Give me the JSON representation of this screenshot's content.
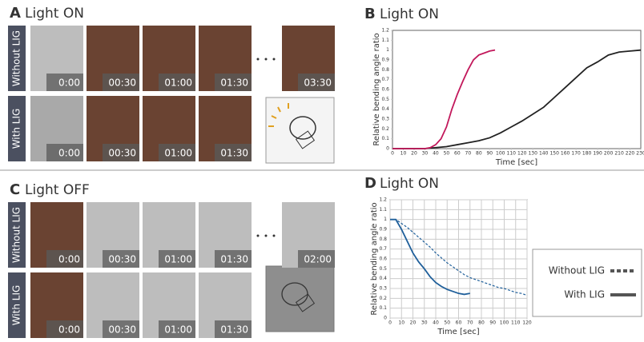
{
  "panels": [
    {
      "label": "A",
      "title": "Light ON",
      "rows": [
        {
          "label": "Without LIG",
          "times": [
            "0:00",
            "00:30",
            "01:00",
            "01:30",
            "03:30"
          ]
        },
        {
          "label": "With LIG",
          "times": [
            "0:00",
            "00:30",
            "01:00",
            "01:30"
          ]
        }
      ]
    },
    {
      "label": "C",
      "title": "Light OFF",
      "rows": [
        {
          "label": "Without LIG",
          "times": [
            "0:00",
            "00:30",
            "01:00",
            "01:30",
            "02:00"
          ]
        },
        {
          "label": "With LIG",
          "times": [
            "0:00",
            "00:30",
            "01:00",
            "01:30"
          ]
        }
      ]
    }
  ],
  "chart_data": [
    {
      "type": "line",
      "panel": "B",
      "title": "Light ON",
      "x_label": "Time [sec]",
      "y_label": "Relative bending angle ratio",
      "xlim": [
        0,
        230
      ],
      "xticks": [
        0,
        10,
        20,
        30,
        40,
        50,
        60,
        70,
        80,
        90,
        100,
        110,
        120,
        130,
        140,
        150,
        160,
        170,
        180,
        190,
        200,
        210,
        220,
        230
      ],
      "ylim": [
        0,
        1.2
      ],
      "yticks": [
        0,
        0.1,
        0.2,
        0.3,
        0.4,
        0.5,
        0.6,
        0.7,
        0.8,
        0.9,
        1,
        1.1,
        1.2
      ],
      "grid": false,
      "series": [
        {
          "name": "Without LIG",
          "color": "#222222",
          "dashed": false,
          "x": [
            0,
            10,
            20,
            30,
            40,
            50,
            60,
            70,
            80,
            90,
            100,
            110,
            120,
            130,
            140,
            150,
            160,
            170,
            180,
            190,
            200,
            210,
            220,
            230
          ],
          "values": [
            0,
            0,
            0,
            0,
            0.01,
            0.02,
            0.04,
            0.06,
            0.08,
            0.11,
            0.16,
            0.22,
            0.28,
            0.35,
            0.42,
            0.52,
            0.62,
            0.72,
            0.82,
            0.88,
            0.95,
            0.98,
            0.99,
            1
          ]
        },
        {
          "name": "With LIG",
          "color": "#c2185b",
          "dashed": false,
          "x": [
            0,
            5,
            10,
            15,
            20,
            25,
            30,
            35,
            40,
            45,
            50,
            55,
            60,
            65,
            70,
            75,
            80,
            85,
            90,
            95
          ],
          "values": [
            0,
            0,
            0,
            0,
            0,
            0,
            0,
            0.01,
            0.04,
            0.1,
            0.22,
            0.4,
            0.55,
            0.68,
            0.8,
            0.9,
            0.95,
            0.97,
            0.99,
            1
          ]
        }
      ]
    },
    {
      "type": "line",
      "panel": "D",
      "title": "Light ON",
      "x_label": "Time [sec]",
      "y_label": "Relative bending angle ratio",
      "xlim": [
        0,
        120
      ],
      "xticks": [
        0,
        10,
        20,
        30,
        40,
        50,
        60,
        70,
        80,
        90,
        100,
        110,
        120
      ],
      "ylim": [
        0,
        1.2
      ],
      "yticks": [
        0,
        0.1,
        0.2,
        0.3,
        0.4,
        0.5,
        0.6,
        0.7,
        0.8,
        0.9,
        1,
        1.1,
        1.2
      ],
      "grid": true,
      "series": [
        {
          "name": "Without LIG",
          "color": "#1f5f9a",
          "dashed": true,
          "x": [
            0,
            5,
            10,
            15,
            20,
            25,
            30,
            35,
            40,
            45,
            50,
            55,
            60,
            65,
            70,
            75,
            80,
            85,
            90,
            95,
            100,
            105,
            110,
            115,
            120
          ],
          "values": [
            1,
            1,
            0.96,
            0.92,
            0.87,
            0.82,
            0.77,
            0.72,
            0.66,
            0.61,
            0.56,
            0.52,
            0.48,
            0.44,
            0.41,
            0.39,
            0.37,
            0.35,
            0.33,
            0.31,
            0.3,
            0.28,
            0.26,
            0.25,
            0.23
          ]
        },
        {
          "name": "With LIG",
          "color": "#1f5f9a",
          "dashed": false,
          "x": [
            0,
            5,
            10,
            15,
            20,
            25,
            30,
            35,
            40,
            45,
            50,
            55,
            60,
            65,
            70
          ],
          "values": [
            1,
            1,
            0.9,
            0.78,
            0.66,
            0.57,
            0.5,
            0.42,
            0.36,
            0.32,
            0.29,
            0.27,
            0.25,
            0.24,
            0.25
          ]
        }
      ]
    }
  ]
}
